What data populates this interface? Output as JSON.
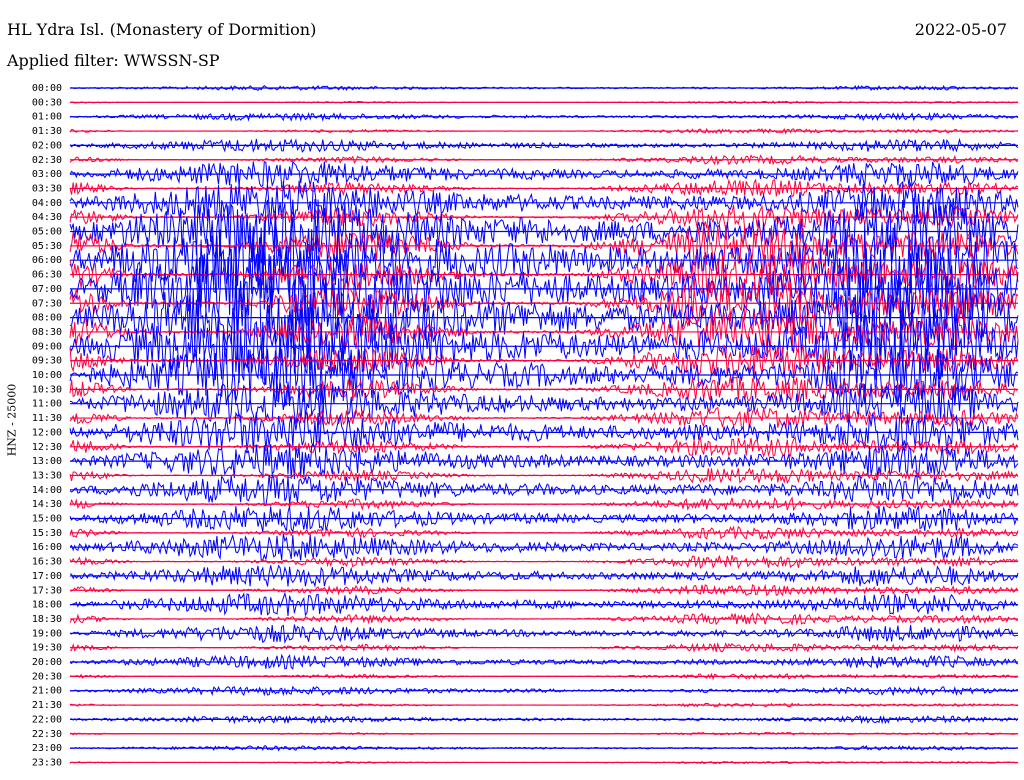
{
  "header": {
    "station": "HL Ydra Isl. (Monastery of Dormition)",
    "date": "2022-05-07",
    "filter": "Applied filter: WWSSN-SP"
  },
  "chart_data": {
    "type": "line",
    "title": "HL Ydra Isl. (Monastery of Dormition)",
    "subtitle": "Applied filter: WWSSN-SP",
    "ylabel": "HNZ - 25000",
    "xlabel": "",
    "grid": false,
    "legend": "none",
    "colors": {
      "odd_rows": "#0000ff",
      "even_rows": "#ff0040"
    },
    "rows": [
      "00:00",
      "00:30",
      "01:00",
      "01:30",
      "02:00",
      "02:30",
      "03:00",
      "03:30",
      "04:00",
      "04:30",
      "05:00",
      "05:30",
      "06:00",
      "06:30",
      "07:00",
      "07:30",
      "08:00",
      "08:30",
      "09:00",
      "09:30",
      "10:00",
      "10:30",
      "11:00",
      "11:30",
      "12:00",
      "12:30",
      "13:00",
      "13:30",
      "14:00",
      "14:30",
      "15:00",
      "15:30",
      "16:00",
      "16:30",
      "17:00",
      "17:30",
      "18:00",
      "18:30",
      "19:00",
      "19:30",
      "20:00",
      "20:30",
      "21:00",
      "21:30",
      "22:00",
      "22:30",
      "23:00",
      "23:30"
    ],
    "row_minutes": 30,
    "row_amplitude_level": [
      0.05,
      0.05,
      0.08,
      0.1,
      0.15,
      0.2,
      0.3,
      0.4,
      0.5,
      0.6,
      0.8,
      1.0,
      1.0,
      1.0,
      1.0,
      1.0,
      1.0,
      1.0,
      0.9,
      0.8,
      0.7,
      0.6,
      0.5,
      0.5,
      0.5,
      0.45,
      0.4,
      0.35,
      0.35,
      0.3,
      0.3,
      0.28,
      0.3,
      0.3,
      0.25,
      0.25,
      0.25,
      0.25,
      0.2,
      0.2,
      0.15,
      0.12,
      0.1,
      0.08,
      0.08,
      0.06,
      0.05,
      0.05
    ],
    "burst_minutes": [
      5,
      7,
      9,
      11,
      15,
      20,
      25,
      28,
      39,
      50,
      53,
      58,
      62,
      66,
      85,
      88
    ]
  }
}
